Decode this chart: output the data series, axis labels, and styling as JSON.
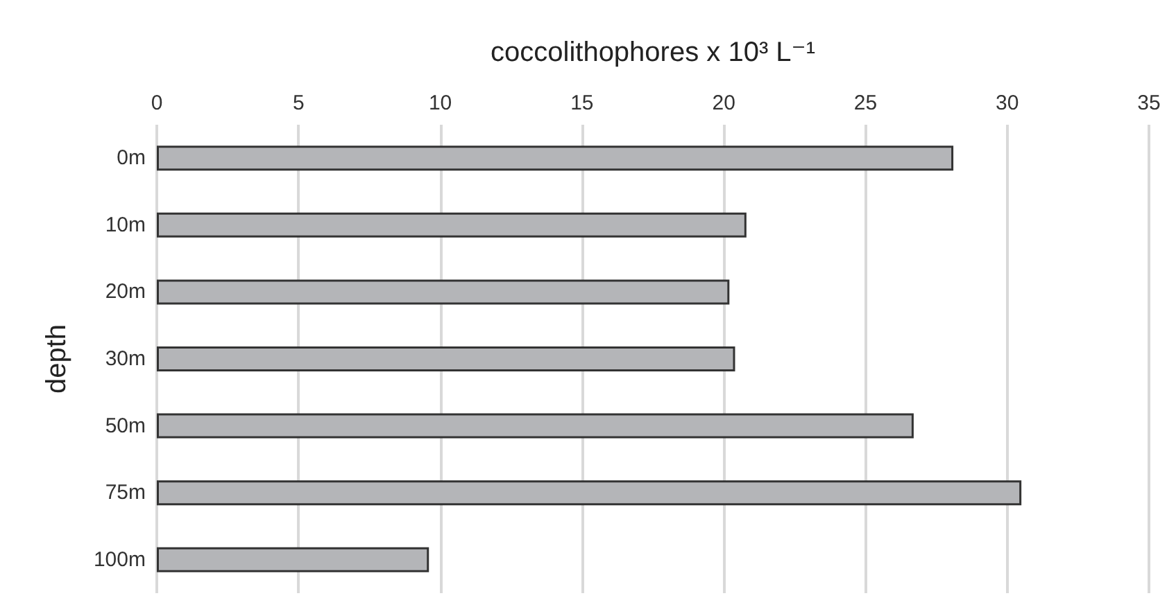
{
  "chart_data": {
    "type": "bar",
    "orientation": "horizontal",
    "xlabel": "coccolithophores x 10³ L⁻¹",
    "ylabel": "depth",
    "categories": [
      "0m",
      "10m",
      "20m",
      "30m",
      "50m",
      "75m",
      "100m"
    ],
    "values": [
      28.1,
      20.8,
      20.2,
      20.4,
      26.7,
      30.5,
      9.6
    ],
    "color": "#b4b5b8",
    "xlim": [
      0,
      35
    ],
    "xticks": [
      0,
      5,
      10,
      15,
      20,
      25,
      30,
      35
    ],
    "grid": "x"
  }
}
